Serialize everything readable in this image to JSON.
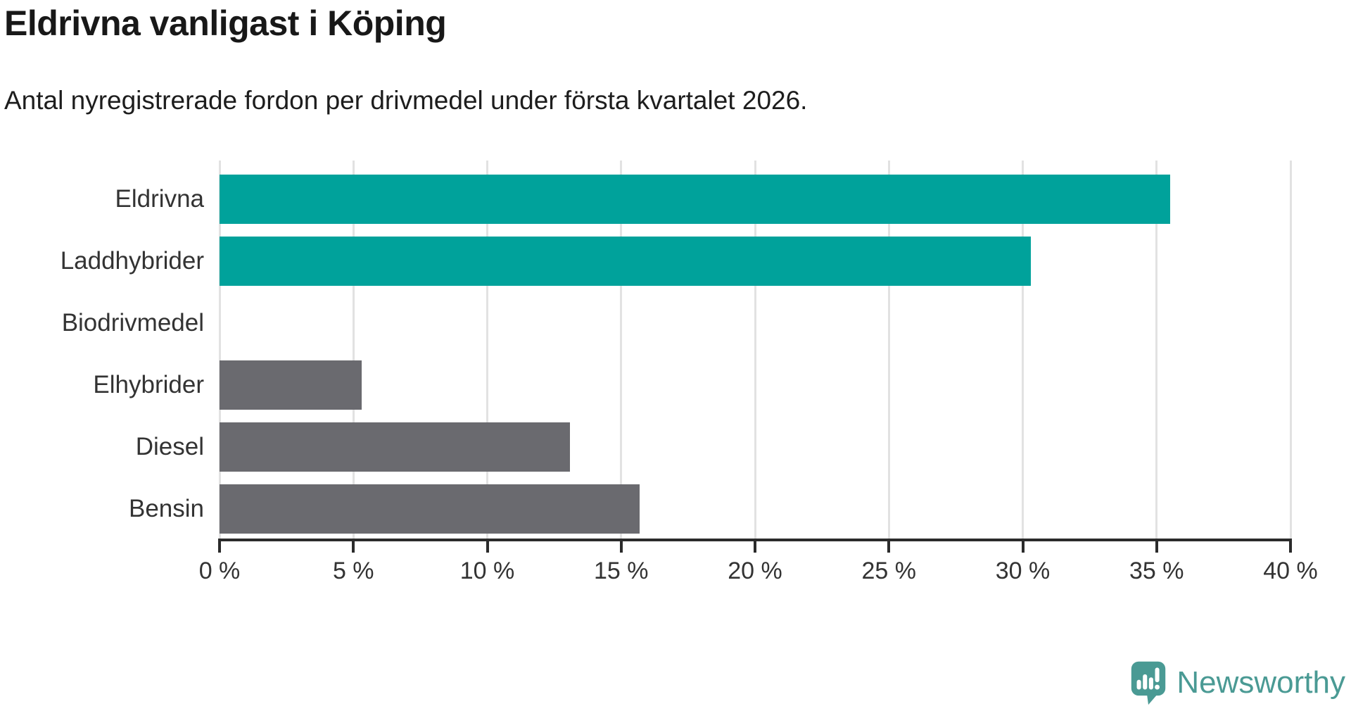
{
  "header": {
    "title": "Eldrivna vanligast i Köping",
    "subtitle": "Antal nyregistrerade fordon per drivmedel under första kvartalet 2026."
  },
  "chart_data": {
    "type": "bar",
    "orientation": "horizontal",
    "title": "Eldrivna vanligast i Köping",
    "subtitle": "Antal nyregistrerade fordon per drivmedel under första kvartalet 2026.",
    "categories": [
      "Eldrivna",
      "Laddhybrider",
      "Biodrivmedel",
      "Elhybrider",
      "Diesel",
      "Bensin"
    ],
    "values": [
      35.5,
      30.3,
      0,
      5.3,
      13.1,
      15.7
    ],
    "unit": "%",
    "bar_colors": [
      "#00a29b",
      "#00a29b",
      "#6a6a6f",
      "#6a6a6f",
      "#6a6a6f",
      "#6a6a6f"
    ],
    "highlight_color": "#00a29b",
    "default_color": "#6a6a6f",
    "xlim": [
      0,
      40
    ],
    "tick_step": 5,
    "tick_labels": [
      "0 %",
      "5 %",
      "10 %",
      "15 %",
      "20 %",
      "25 %",
      "30 %",
      "35 %",
      "40 %"
    ],
    "grid": true,
    "legend": "none",
    "xlabel": "",
    "ylabel": ""
  },
  "footer": {
    "brand": "Newsworthy",
    "brand_color": "#4a9a94",
    "logo_icon": "newsworthy-speech-bubble-chart-icon"
  }
}
